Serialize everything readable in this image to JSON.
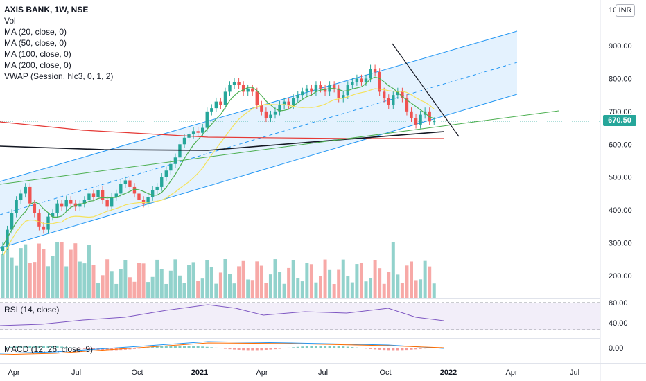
{
  "legend": {
    "symbol": "AXIS BANK, 1W, NSE",
    "items": [
      "Vol",
      "MA (20, close, 0)",
      "MA (50, close, 0)",
      "MA (100, close, 0)",
      "MA (200, close, 0)",
      "VWAP (Session, hlc3, 0, 1, 2)"
    ]
  },
  "currency": "INR",
  "last_price": "670.50",
  "price_axis": {
    "ticks": [
      "900.00",
      "800.00",
      "700.00",
      "600.00",
      "500.00",
      "400.00",
      "300.00",
      "200.00"
    ],
    "values": [
      900,
      800,
      700,
      600,
      500,
      400,
      300,
      200
    ],
    "partial_top": "10"
  },
  "rsi": {
    "title": "RSI (14, close)",
    "ticks": [
      "80.00",
      "40.00"
    ],
    "values": [
      80,
      40
    ]
  },
  "macd": {
    "title": "MACD (12, 26, close, 9)",
    "ticks": [
      "0.00"
    ]
  },
  "x_axis": {
    "labels": [
      "Apr",
      "Jul",
      "Oct",
      "2021",
      "Apr",
      "Jul",
      "Oct",
      "2022",
      "Apr",
      "Jul"
    ]
  },
  "colors": {
    "up": "#26a69a",
    "down": "#ef5350",
    "channel": "#2196f3",
    "ma20": "#4caf50",
    "ma50": "#f5e25b",
    "ma100": "#e53935",
    "ma200": "#131722",
    "trend": "#131722",
    "rsi": "#7e57c2"
  },
  "chart_data": {
    "type": "candlestick",
    "interval": "1W",
    "ylim": [
      100,
      1000
    ],
    "close": [
      290,
      340,
      390,
      430,
      450,
      470,
      420,
      390,
      350,
      340,
      380,
      390,
      420,
      410,
      430,
      420,
      410,
      420,
      430,
      450,
      440,
      460,
      430,
      410,
      440,
      450,
      480,
      490,
      470,
      450,
      430,
      420,
      440,
      460,
      470,
      500,
      520,
      540,
      560,
      600,
      620,
      630,
      640,
      635,
      650,
      700,
      710,
      730,
      720,
      760,
      780,
      790,
      780,
      760,
      770,
      760,
      720,
      700,
      680,
      690,
      700,
      720,
      730,
      720,
      740,
      750,
      760,
      770,
      760,
      780,
      770,
      760,
      780,
      770,
      740,
      750,
      780,
      790,
      800,
      790,
      800,
      830,
      820,
      760,
      740,
      720,
      750,
      760,
      740,
      700,
      680,
      660,
      690,
      700,
      670,
      670
    ]
  }
}
